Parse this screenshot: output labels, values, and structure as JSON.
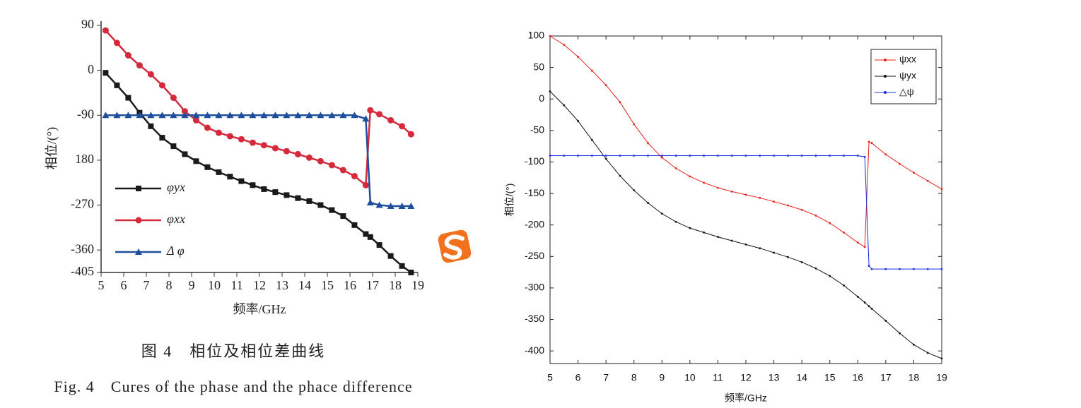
{
  "caption": {
    "zh": "图 4　相位及相位差曲线",
    "en": "Fig. 4　Cures of the phase and the phace difference"
  },
  "chart_data": [
    {
      "type": "line",
      "xlabel": "频率/GHz",
      "ylabel": "相位/(°)",
      "legend": "lower left",
      "box": false,
      "xlim": [
        5,
        19
      ],
      "xticks": [
        5,
        6,
        7,
        8,
        9,
        10,
        11,
        12,
        13,
        14,
        15,
        16,
        17,
        18,
        19
      ],
      "ylim": [
        -405,
        90
      ],
      "yticks": [
        90,
        0,
        -90,
        {
          "value": -180,
          "label": "180"
        },
        -270,
        -360,
        -405
      ],
      "x": [
        5.2,
        5.7,
        6.2,
        6.7,
        7.2,
        7.7,
        8.2,
        8.7,
        9.2,
        9.7,
        10.2,
        10.7,
        11.2,
        11.7,
        12.2,
        12.7,
        13.2,
        13.7,
        14.2,
        14.7,
        15.2,
        15.7,
        16.2,
        16.7,
        16.9,
        17.3,
        17.8,
        18.3,
        18.7
      ],
      "series": [
        {
          "name": "φyx",
          "color": "#1a1a1a",
          "marker": "square",
          "values": [
            -5,
            -30,
            -55,
            -85,
            -112,
            -135,
            -152,
            -168,
            -182,
            -194,
            -204,
            -213,
            -222,
            -230,
            -238,
            -244,
            -250,
            -256,
            -262,
            -270,
            -280,
            -292,
            -310,
            -328,
            -334,
            -350,
            -372,
            -392,
            -405
          ]
        },
        {
          "name": "φxx",
          "color": "#d42a3c",
          "marker": "circle",
          "values": [
            80,
            55,
            30,
            10,
            -8,
            -30,
            -55,
            -82,
            -100,
            -115,
            -125,
            -132,
            -138,
            -145,
            -150,
            -156,
            -162,
            -168,
            -175,
            -182,
            -190,
            -200,
            -212,
            -230,
            -80,
            -88,
            -100,
            -112,
            -128
          ]
        },
        {
          "name": "Δ φ",
          "color": "#1f4e9c",
          "marker": "triangle",
          "values": [
            -90,
            -90,
            -90,
            -90,
            -90,
            -90,
            -90,
            -90,
            -90,
            -90,
            -90,
            -90,
            -90,
            -90,
            -90,
            -90,
            -90,
            -90,
            -90,
            -90,
            -90,
            -90,
            -90,
            -97,
            -265,
            -270,
            -272,
            -272,
            -272
          ]
        }
      ]
    },
    {
      "type": "line",
      "xlabel": "频率/GHz",
      "ylabel": "相位/(°)",
      "legend": "upper right",
      "box": true,
      "xlim": [
        5,
        19
      ],
      "xticks": [
        5,
        6,
        7,
        8,
        9,
        10,
        11,
        12,
        13,
        14,
        15,
        16,
        17,
        18,
        19
      ],
      "ylim": [
        -420,
        100
      ],
      "yticks": [
        100,
        50,
        0,
        -50,
        -100,
        -150,
        -200,
        -250,
        -300,
        -350,
        -400
      ],
      "x": [
        5,
        5.5,
        6,
        6.5,
        7,
        7.5,
        8,
        8.5,
        9,
        9.5,
        10,
        10.5,
        11,
        11.5,
        12,
        12.5,
        13,
        13.5,
        14,
        14.5,
        15,
        15.5,
        16,
        16.25,
        16.4,
        16.5,
        17,
        17.5,
        18,
        18.5,
        19
      ],
      "series": [
        {
          "name": "ψxx",
          "color": "#e8201c",
          "marker": "dot",
          "values": [
            100,
            86,
            67,
            45,
            22,
            -5,
            -40,
            -70,
            -93,
            -110,
            -123,
            -133,
            -141,
            -147,
            -152,
            -157,
            -163,
            -169,
            -176,
            -185,
            -197,
            -212,
            -228,
            -235,
            -68,
            -70,
            -88,
            -103,
            -117,
            -130,
            -143
          ]
        },
        {
          "name": "ψyx",
          "color": "#111111",
          "marker": "dot",
          "values": [
            12,
            -10,
            -35,
            -65,
            -95,
            -122,
            -145,
            -165,
            -182,
            -195,
            -205,
            -212,
            -219,
            -225,
            -231,
            -237,
            -244,
            -251,
            -259,
            -269,
            -281,
            -296,
            -314,
            -323,
            -329,
            -333,
            -352,
            -372,
            -390,
            -403,
            -412
          ]
        },
        {
          "name": "△ψ",
          "color": "#1c2ee8",
          "marker": "dot",
          "values": [
            -90,
            -90,
            -90,
            -90,
            -90,
            -90,
            -90,
            -90,
            -90,
            -90,
            -90,
            -90,
            -90,
            -90,
            -90,
            -90,
            -90,
            -90,
            -90,
            -90,
            -90,
            -90,
            -90,
            -92,
            -265,
            -270,
            -270,
            -270,
            -270,
            -270,
            -270
          ]
        }
      ]
    }
  ]
}
